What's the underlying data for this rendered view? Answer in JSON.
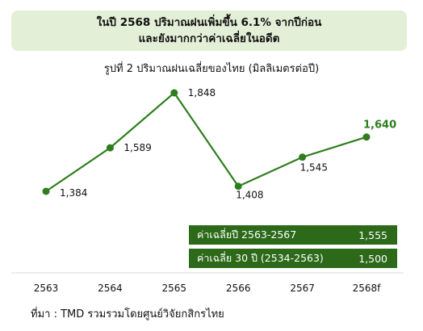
{
  "headline": {
    "line1": "ในปี 2568 ปริมาณฝนเพิ่มขึ้น 6.1% จากปีก่อน",
    "line2": "และยังมากกว่าค่าเฉลี่ยในอดีต"
  },
  "stats": [
    {
      "label": "ค่าเฉลี่ยปี 2563-2567",
      "value": "1,555"
    },
    {
      "label": "ค่าเฉลี่ย 30 ปี (2534-2563)",
      "value": "1,500"
    }
  ],
  "source": "ที่มา : TMD รวมรวมโดยศูนย์วิจัยกสิกรไทย",
  "colors": {
    "line": "#2e7d1e",
    "headline_bg": "#e3efd6",
    "stat_bg": "#2c6a1a",
    "highlight_label": "#2e7d1e"
  },
  "chart_data": {
    "type": "line",
    "title": "รูปที่ 2 ปริมาณฝนเฉลี่ยของไทย (มิลลิเมตรต่อปี)",
    "categories": [
      "2563",
      "2564",
      "2565",
      "2566",
      "2567",
      "2568f"
    ],
    "series": [
      {
        "values": [
          1384,
          1589,
          1848,
          1408,
          1545,
          1640
        ],
        "labels": [
          "1,384",
          "1,589",
          "1,848",
          "1,408",
          "1,545",
          "1,640"
        ]
      }
    ],
    "highlight_index": 5,
    "ylim": [
      1250,
      1900
    ],
    "grid": false,
    "xlabel": "",
    "ylabel": ""
  }
}
